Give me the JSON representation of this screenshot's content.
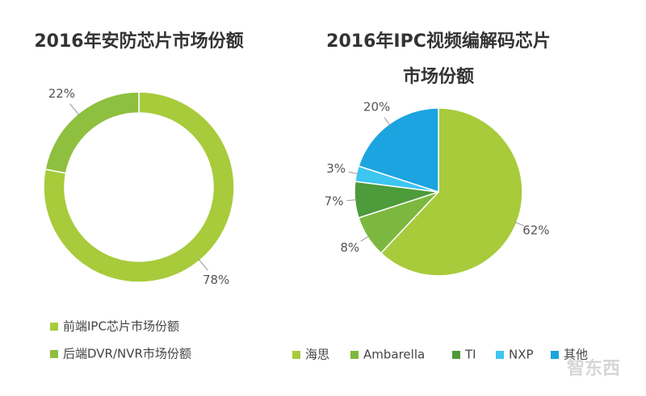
{
  "chart_data": [
    {
      "type": "donut",
      "title": [
        "2016年安防芯片市场份额"
      ],
      "categories": [
        "前端IPC芯片市场份额",
        "后端DVR/NVR市场份额"
      ],
      "values": [
        78,
        22
      ],
      "value_labels": [
        "78%",
        "22%"
      ],
      "colors": [
        "#a7cb3b",
        "#8fbf3e"
      ]
    },
    {
      "type": "pie",
      "title": [
        "2016年IPC视频编解码芯片",
        "市场份额"
      ],
      "categories": [
        "海思",
        "Ambarella",
        "TI",
        "NXP",
        "其他"
      ],
      "values": [
        62,
        8,
        7,
        3,
        20
      ],
      "value_labels": [
        "62%",
        "8%",
        "7%",
        "3%",
        "20%"
      ],
      "colors": [
        "#a7cb3b",
        "#7cb83f",
        "#4d9b3a",
        "#3cc6f0",
        "#1ba4df"
      ]
    }
  ],
  "watermark": "智东西"
}
